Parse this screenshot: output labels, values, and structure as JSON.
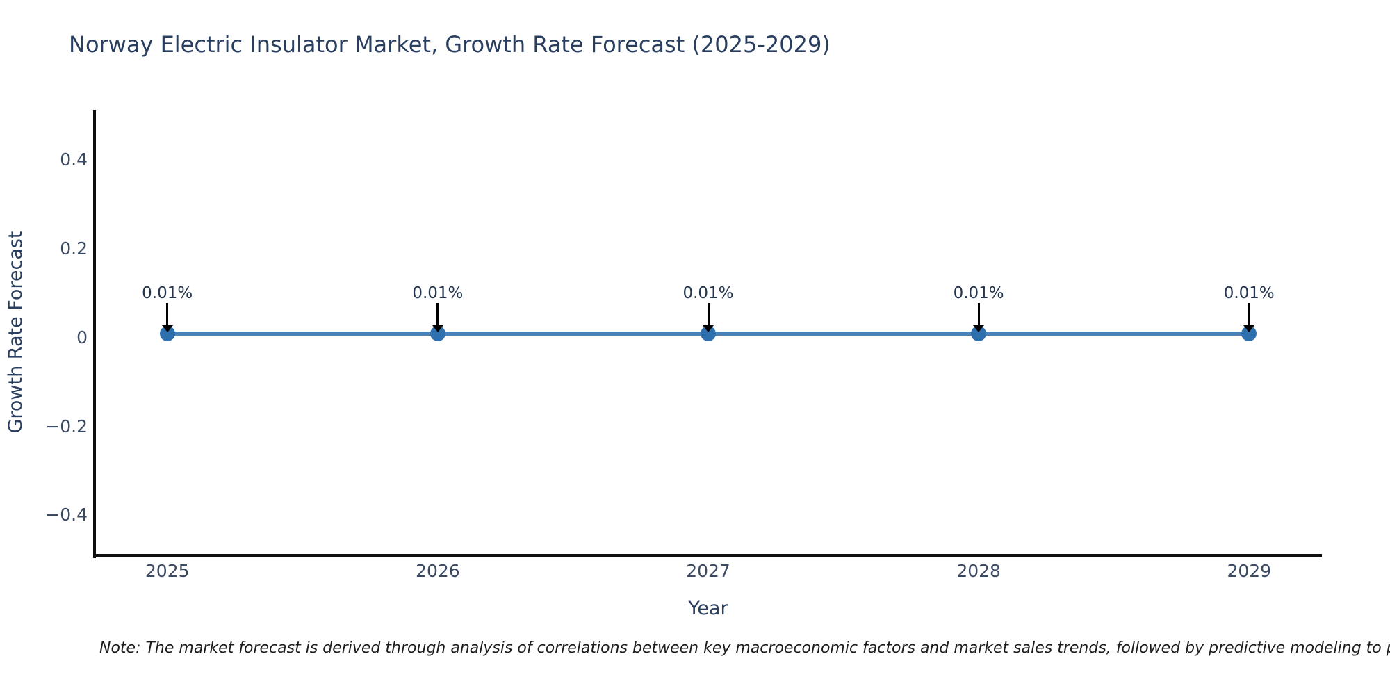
{
  "title": "Norway Electric Insulator Market, Growth Rate Forecast (2025-2029)",
  "note": "Note: The market forecast is derived through analysis of correlations between key macroeconomic factors and market sales trends, followed by predictive modeling to project future sales.",
  "chart_data": {
    "type": "line",
    "title": "Norway Electric Insulator Market, Growth Rate Forecast (2025-2029)",
    "xlabel": "Year",
    "ylabel": "Growth Rate Forecast",
    "x": [
      2025,
      2026,
      2027,
      2028,
      2029
    ],
    "series": [
      {
        "name": "Growth Rate Forecast",
        "values": [
          0.01,
          0.01,
          0.01,
          0.01,
          0.01
        ]
      }
    ],
    "point_labels": [
      "0.01%",
      "0.01%",
      "0.01%",
      "0.01%",
      "0.01%"
    ],
    "xticks": {
      "values": [
        2025,
        2026,
        2027,
        2028,
        2029
      ],
      "labels": [
        "2025",
        "2026",
        "2027",
        "2028",
        "2029"
      ]
    },
    "yticks": {
      "values": [
        0.4,
        0.2,
        0,
        -0.2,
        -0.4
      ],
      "labels": [
        "0.4",
        "0.2",
        "0",
        "−0.2",
        "−0.4"
      ]
    },
    "xlim": [
      2024.736,
      2029.264
    ],
    "ylim": [
      -0.49,
      0.51
    ],
    "grid": false,
    "legend": false,
    "annotation_arrows": true,
    "colors": {
      "line": "#4a82b8",
      "marker": "#2e6fae",
      "annotation_text": "#24354f",
      "arrow": "#000000",
      "axis_line": "#0f0f0f",
      "tick_label": "#3b4a63",
      "title": "#2a3f5f"
    }
  }
}
